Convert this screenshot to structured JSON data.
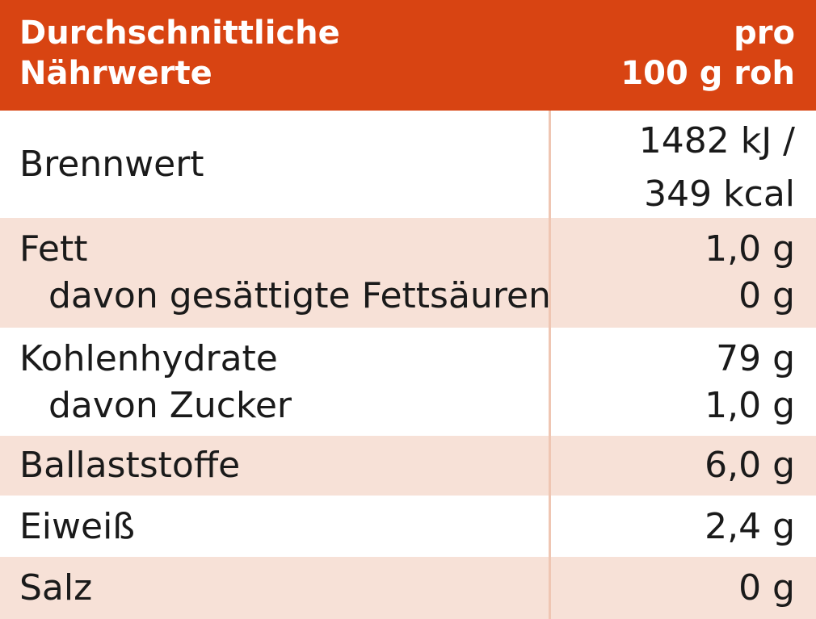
{
  "header": {
    "title_line1": "Durchschnittliche",
    "title_line2": "Nährwerte",
    "unit_line1": "pro",
    "unit_line2": "100 g roh"
  },
  "rows": [
    {
      "label": "Brennwert",
      "value_line1": "1482 kJ /",
      "value_line2": "349 kcal"
    },
    {
      "label": "Fett",
      "value": "1,0 g",
      "sub_label": "davon gesättigte Fettsäuren",
      "sub_value": "0 g"
    },
    {
      "label": "Kohlenhydrate",
      "value": "79 g",
      "sub_label": "davon Zucker",
      "sub_value": "1,0 g"
    },
    {
      "label": "Ballaststoffe",
      "value": "6,0 g"
    },
    {
      "label": "Eiweiß",
      "value": "2,4 g"
    },
    {
      "label": "Salz",
      "value": "0 g"
    }
  ],
  "colors": {
    "header_bg": "#d84412",
    "row_tint": "#f7e1d7",
    "divider": "#efc6b3"
  }
}
